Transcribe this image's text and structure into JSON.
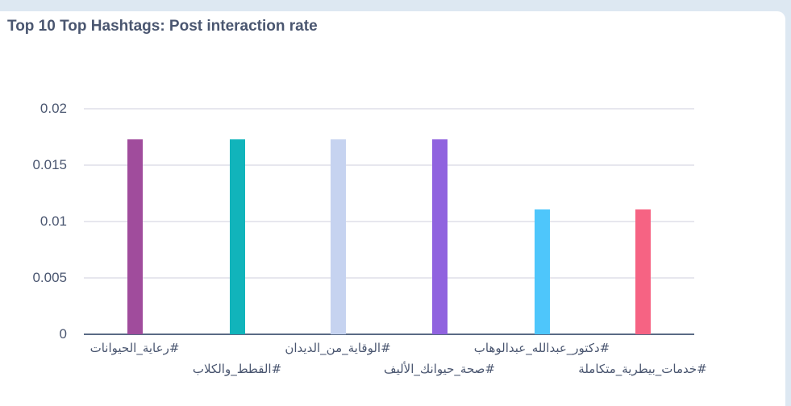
{
  "title": "Top 10 Top Hashtags: Post interaction rate",
  "chart_data": {
    "type": "bar",
    "title": "Top 10 Top Hashtags: Post interaction rate",
    "xlabel": "",
    "ylabel": "",
    "ylim": [
      0,
      0.02
    ],
    "yticks": [
      "0.02",
      "0.015",
      "0.01",
      "0.005",
      "0"
    ],
    "grid": true,
    "legend": "none",
    "categories": [
      "#رعاية_الحيوانات",
      "#القطط_والكلاب",
      "#الوقاية_من_الديدان",
      "#صحة_حيوانك_الأليف",
      "#دكتور_عبدالله_عبدالوهاب",
      "#خدمات_بيطرية_متكاملة"
    ],
    "values": [
      0.0173,
      0.0173,
      0.0173,
      0.0173,
      0.0111,
      0.0111
    ],
    "colors": [
      "#a04c9c",
      "#11b4bb",
      "#c6d3f0",
      "#9063df",
      "#4ec6fb",
      "#f66383"
    ]
  }
}
